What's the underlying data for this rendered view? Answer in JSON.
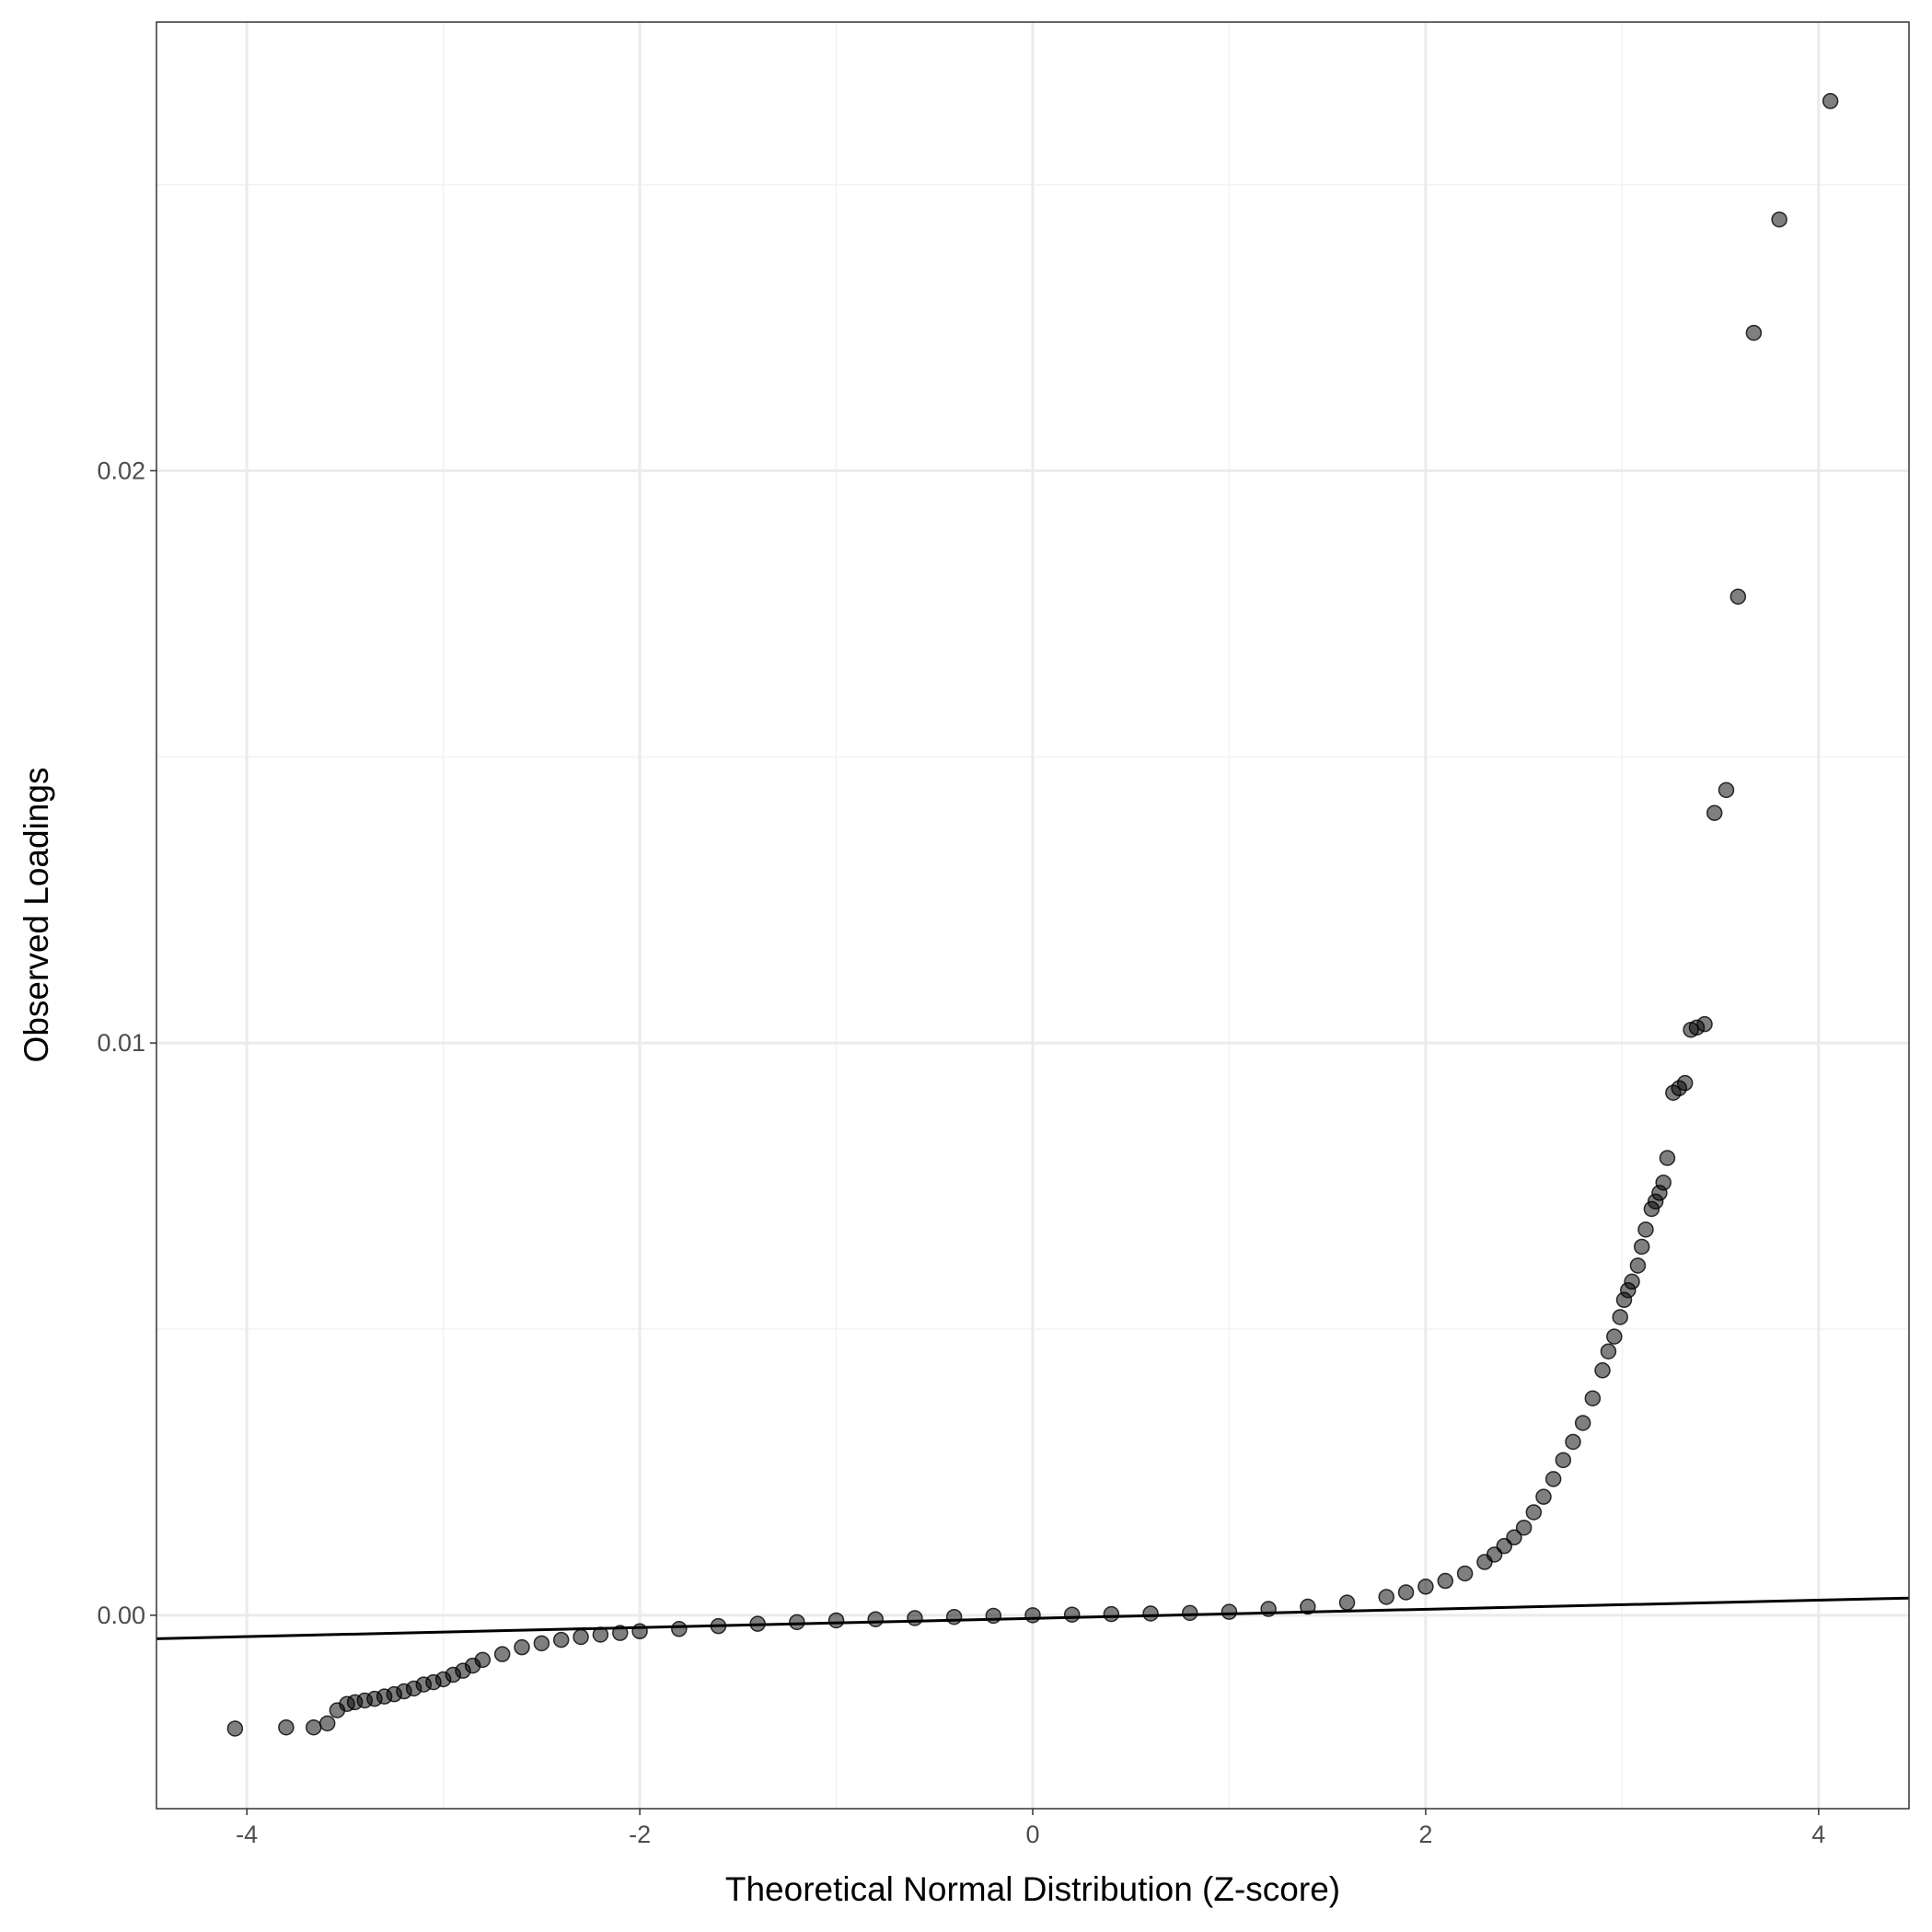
{
  "chart_data": {
    "type": "scatter",
    "x_label": "Theoretical Normal Distribution (Z-score)",
    "y_label": "Observed Loadings",
    "x": [
      -4.06,
      -3.8,
      -3.66,
      -3.59,
      -3.54,
      -3.49,
      -3.45,
      -3.4,
      -3.35,
      -3.3,
      -3.25,
      -3.2,
      -3.15,
      -3.1,
      -3.05,
      -3.0,
      -2.95,
      -2.9,
      -2.85,
      -2.8,
      -2.7,
      -2.6,
      -2.5,
      -2.4,
      -2.3,
      -2.2,
      -2.1,
      -2.0,
      -1.8,
      -1.6,
      -1.4,
      -1.2,
      -1.0,
      -0.8,
      -0.6,
      -0.4,
      -0.2,
      0,
      0.2,
      0.4,
      0.6,
      0.8,
      1.0,
      1.2,
      1.4,
      1.6,
      1.8,
      1.9,
      2.0,
      2.1,
      2.2,
      2.3,
      2.35,
      2.4,
      2.45,
      2.5,
      2.55,
      2.6,
      2.65,
      2.7,
      2.75,
      2.8,
      2.85,
      2.9,
      2.93,
      2.96,
      2.99,
      3.01,
      3.03,
      3.05,
      3.08,
      3.1,
      3.12,
      3.15,
      3.17,
      3.19,
      3.21,
      3.23,
      3.26,
      3.29,
      3.32,
      3.35,
      3.38,
      3.42,
      3.47,
      3.53,
      3.59,
      3.67,
      3.8,
      4.06
    ],
    "y": [
      -0.00198,
      -0.00196,
      -0.00196,
      -0.00189,
      -0.00166,
      -0.00155,
      -0.00152,
      -0.00149,
      -0.00146,
      -0.00142,
      -0.00138,
      -0.00133,
      -0.00128,
      -0.00121,
      -0.00117,
      -0.00112,
      -0.00104,
      -0.00097,
      -0.00088,
      -0.00078,
      -0.00068,
      -0.00056,
      -0.00049,
      -0.00043,
      -0.00038,
      -0.00034,
      -0.00031,
      -0.00028,
      -0.00024,
      -0.00019,
      -0.00015,
      -0.00012,
      -9e-05,
      -7e-05,
      -5e-05,
      -3e-05,
      -1e-05,
      0,
      1e-05,
      2e-05,
      3e-05,
      4e-05,
      6e-05,
      0.00011,
      0.00015,
      0.00022,
      0.00032,
      0.0004,
      0.0005,
      0.0006,
      0.00073,
      0.00093,
      0.00106,
      0.00121,
      0.00136,
      0.00153,
      0.0018,
      0.00207,
      0.00238,
      0.00271,
      0.00303,
      0.00336,
      0.00379,
      0.00428,
      0.00461,
      0.00487,
      0.00521,
      0.00551,
      0.00568,
      0.00583,
      0.00611,
      0.00644,
      0.00674,
      0.0071,
      0.00723,
      0.00738,
      0.00756,
      0.00799,
      0.00913,
      0.00921,
      0.0093,
      0.01023,
      0.01027,
      0.01033,
      0.01402,
      0.01442,
      0.0178,
      0.02241,
      0.02439,
      0.02646
    ],
    "color": "#000000",
    "alpha": 0.5,
    "reference_line": {
      "x": [
        -4.46,
        4.46
      ],
      "y": [
        -0.00041,
        0.0003
      ],
      "color": "#000000"
    },
    "xlim": [
      -4.46,
      4.46
    ],
    "ylim": [
      -0.00338,
      0.02784
    ],
    "xticks": [
      -4,
      -2,
      0,
      2,
      4
    ],
    "yticks": [
      {
        "value": 0,
        "label": "0.00"
      },
      {
        "value": 0.01,
        "label": "0.01"
      },
      {
        "value": 0.02,
        "label": "0.02"
      }
    ],
    "minor_xticks": [
      -3,
      -1,
      1,
      3
    ],
    "minor_yticks": [
      0.005,
      0.015,
      0.025
    ],
    "grid": true
  }
}
